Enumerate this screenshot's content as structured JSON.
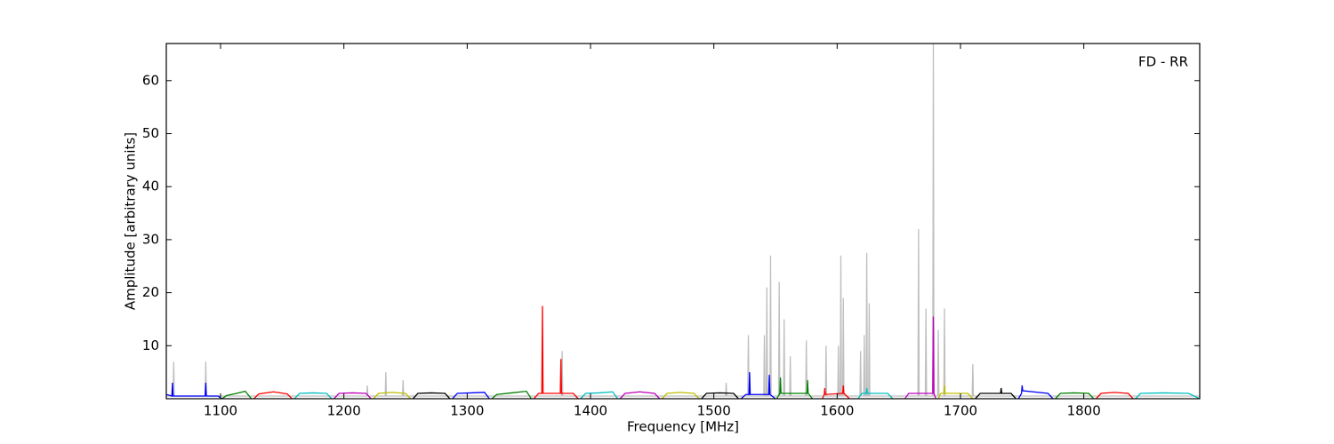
{
  "chart_data": {
    "type": "line",
    "annotation": "FD - RR",
    "x_label": "Frequency [MHz]",
    "y_label": "Amplitude [arbitrary units]",
    "xlim": [
      1056,
      1894
    ],
    "ylim": [
      0,
      67
    ],
    "xticks": [
      1100,
      1200,
      1300,
      1400,
      1500,
      1600,
      1700,
      1800
    ],
    "yticks": [
      10,
      20,
      30,
      40,
      50,
      60
    ],
    "series": [
      {
        "color": "#bfbfbf",
        "x": [
          1056,
          1061.5,
          1062,
          1062.5,
          1087.5,
          1088,
          1088.5,
          1218.5,
          1219,
          1219.5,
          1233.5,
          1234,
          1234.5,
          1247.5,
          1248,
          1248.5,
          1376.5,
          1377,
          1377.5,
          1509.5,
          1510,
          1510.5,
          1527.5,
          1528,
          1528.5,
          1540.5,
          1541,
          1541.5,
          1542.5,
          1543,
          1543.5,
          1545.5,
          1546,
          1546.5,
          1552.5,
          1553,
          1553.5,
          1556.5,
          1557,
          1557.5,
          1561.5,
          1562,
          1562.5,
          1574.5,
          1575,
          1575.5,
          1590.5,
          1591,
          1591.5,
          1600.5,
          1601,
          1601.5,
          1602.5,
          1603,
          1603.5,
          1604.5,
          1605,
          1605.5,
          1618.5,
          1619,
          1619.5,
          1621.5,
          1622,
          1622.5,
          1623.5,
          1624,
          1624.5,
          1625.5,
          1626,
          1626.5,
          1665.5,
          1666,
          1666.5,
          1671.5,
          1672,
          1672.5,
          1677.5,
          1678,
          1678.5,
          1681.5,
          1682,
          1682.5,
          1686.5,
          1687,
          1687.5,
          1709.5,
          1710,
          1710.5,
          1894
        ],
        "values": [
          0.5,
          0.5,
          7,
          0.5,
          0.5,
          7,
          0.5,
          0.5,
          2.5,
          0.5,
          0.5,
          5,
          0.5,
          0.5,
          3.5,
          0.5,
          0.5,
          9,
          0.5,
          0.5,
          3,
          0.5,
          0.5,
          12,
          0.5,
          0.5,
          12,
          0.5,
          0.5,
          21,
          0.5,
          0.5,
          27,
          0.5,
          0.5,
          22,
          0.5,
          0.5,
          15,
          0.5,
          0.5,
          8,
          0.5,
          0.5,
          11,
          0.5,
          0.5,
          10,
          0.5,
          0.5,
          10,
          0.5,
          0.5,
          27,
          0.5,
          0.5,
          19,
          0.5,
          0.5,
          9,
          0.5,
          0.5,
          12,
          0.5,
          0.5,
          27.5,
          0.5,
          0.5,
          18,
          0.5,
          0.5,
          32,
          0.5,
          0.5,
          17,
          0.5,
          0.5,
          67,
          0.5,
          0.5,
          13,
          0.5,
          0.5,
          17,
          0.5,
          0.5,
          6.5,
          0.5,
          0.5
        ]
      },
      {
        "color": "#0000ff",
        "x": [
          1056,
          1060.5,
          1061,
          1061.5,
          1087.5,
          1088,
          1088.5,
          1098,
          1101
        ],
        "values": [
          0.8,
          0.5,
          3,
          0.5,
          0.5,
          3,
          0.5,
          0.5,
          0
        ]
      },
      {
        "color": "#008000",
        "x": [
          1101,
          1105,
          1113,
          1120,
          1125
        ],
        "values": [
          0,
          0.6,
          1.0,
          1.4,
          0
        ]
      },
      {
        "color": "#ff0000",
        "x": [
          1127,
          1131,
          1143,
          1154,
          1158
        ],
        "values": [
          0,
          0.9,
          1.3,
          0.9,
          0
        ]
      },
      {
        "color": "#00bfbf",
        "x": [
          1160,
          1164,
          1175,
          1186,
          1190
        ],
        "values": [
          0,
          1,
          1.1,
          1,
          0
        ]
      },
      {
        "color": "#bf00bf",
        "x": [
          1192,
          1196,
          1207,
          1218,
          1222
        ],
        "values": [
          0,
          1,
          1.1,
          1,
          0
        ]
      },
      {
        "color": "#bfbf00",
        "x": [
          1224,
          1228,
          1239,
          1250,
          1254
        ],
        "values": [
          0,
          1,
          1.2,
          1,
          0
        ]
      },
      {
        "color": "#000000",
        "x": [
          1256,
          1260,
          1271,
          1282,
          1286
        ],
        "values": [
          0,
          1,
          1.1,
          1,
          0
        ]
      },
      {
        "color": "#0000ff",
        "x": [
          1288,
          1292,
          1303,
          1314,
          1318
        ],
        "values": [
          0,
          1,
          1.1,
          1.2,
          0
        ]
      },
      {
        "color": "#008000",
        "x": [
          1320,
          1324,
          1336,
          1348,
          1352
        ],
        "values": [
          0,
          0.8,
          1.1,
          1.4,
          0
        ]
      },
      {
        "color": "#ff0000",
        "x": [
          1354,
          1358,
          1360.5,
          1361,
          1361.5,
          1375.5,
          1376,
          1376.5,
          1386,
          1390
        ],
        "values": [
          0,
          1,
          1,
          17.5,
          1,
          1,
          7.5,
          1,
          1,
          0
        ]
      },
      {
        "color": "#00bfbf",
        "x": [
          1392,
          1396,
          1407,
          1418,
          1422
        ],
        "values": [
          0,
          1,
          1.1,
          1.3,
          0
        ]
      },
      {
        "color": "#bf00bf",
        "x": [
          1424,
          1428,
          1440,
          1452,
          1456
        ],
        "values": [
          0,
          1,
          1.3,
          1,
          0
        ]
      },
      {
        "color": "#bfbf00",
        "x": [
          1458,
          1462,
          1473,
          1484,
          1488
        ],
        "values": [
          0,
          1,
          1.2,
          1,
          0
        ]
      },
      {
        "color": "#000000",
        "x": [
          1490,
          1494,
          1505,
          1516,
          1520
        ],
        "values": [
          0,
          1,
          1.1,
          1,
          0
        ]
      },
      {
        "color": "#0000ff",
        "x": [
          1522,
          1526,
          1528.5,
          1529,
          1529.5,
          1544.5,
          1545,
          1545.5,
          1550
        ],
        "values": [
          0,
          0.8,
          0.8,
          5,
          0.8,
          0.8,
          4.5,
          0.8,
          0
        ]
      },
      {
        "color": "#008000",
        "x": [
          1551,
          1553.5,
          1554,
          1554.5,
          1575.5,
          1576,
          1576.5,
          1580
        ],
        "values": [
          0,
          1,
          4,
          1,
          1,
          3.5,
          1,
          0
        ]
      },
      {
        "color": "#ff0000",
        "x": [
          1588,
          1589.5,
          1590,
          1590.5,
          1604.5,
          1605,
          1605.5,
          1610
        ],
        "values": [
          0,
          0.8,
          2,
          0.8,
          1,
          2.5,
          1,
          0
        ]
      },
      {
        "color": "#00bfbf",
        "x": [
          1617,
          1620,
          1623.5,
          1624,
          1624.5,
          1641,
          1645
        ],
        "values": [
          0,
          1,
          1,
          2,
          1,
          1,
          0
        ]
      },
      {
        "color": "#bf00bf",
        "x": [
          1655,
          1658,
          1677.5,
          1678,
          1678.5,
          1680
        ],
        "values": [
          0,
          1,
          1,
          15.5,
          1,
          0
        ]
      },
      {
        "color": "#bfbf00",
        "x": [
          1682,
          1684,
          1686.5,
          1687,
          1687.5,
          1706,
          1710
        ],
        "values": [
          0,
          1,
          1,
          2.5,
          1,
          1,
          0
        ]
      },
      {
        "color": "#000000",
        "x": [
          1712,
          1716,
          1732.5,
          1733,
          1733.5,
          1741,
          1745
        ],
        "values": [
          0,
          1,
          1,
          2,
          1,
          1,
          0
        ]
      },
      {
        "color": "#0000ff",
        "x": [
          1747,
          1749.5,
          1750,
          1750.5,
          1771,
          1775
        ],
        "values": [
          0,
          1,
          2.5,
          1.5,
          1,
          0
        ]
      },
      {
        "color": "#008000",
        "x": [
          1777,
          1781,
          1792,
          1804,
          1808
        ],
        "values": [
          0,
          1,
          1.1,
          1,
          0
        ]
      },
      {
        "color": "#ff0000",
        "x": [
          1810,
          1814,
          1825,
          1836,
          1840
        ],
        "values": [
          0,
          1,
          1.2,
          1,
          0
        ]
      },
      {
        "color": "#00bfbf",
        "x": [
          1842,
          1846,
          1865,
          1885,
          1894
        ],
        "values": [
          0,
          1,
          1.1,
          1,
          0
        ]
      }
    ]
  }
}
